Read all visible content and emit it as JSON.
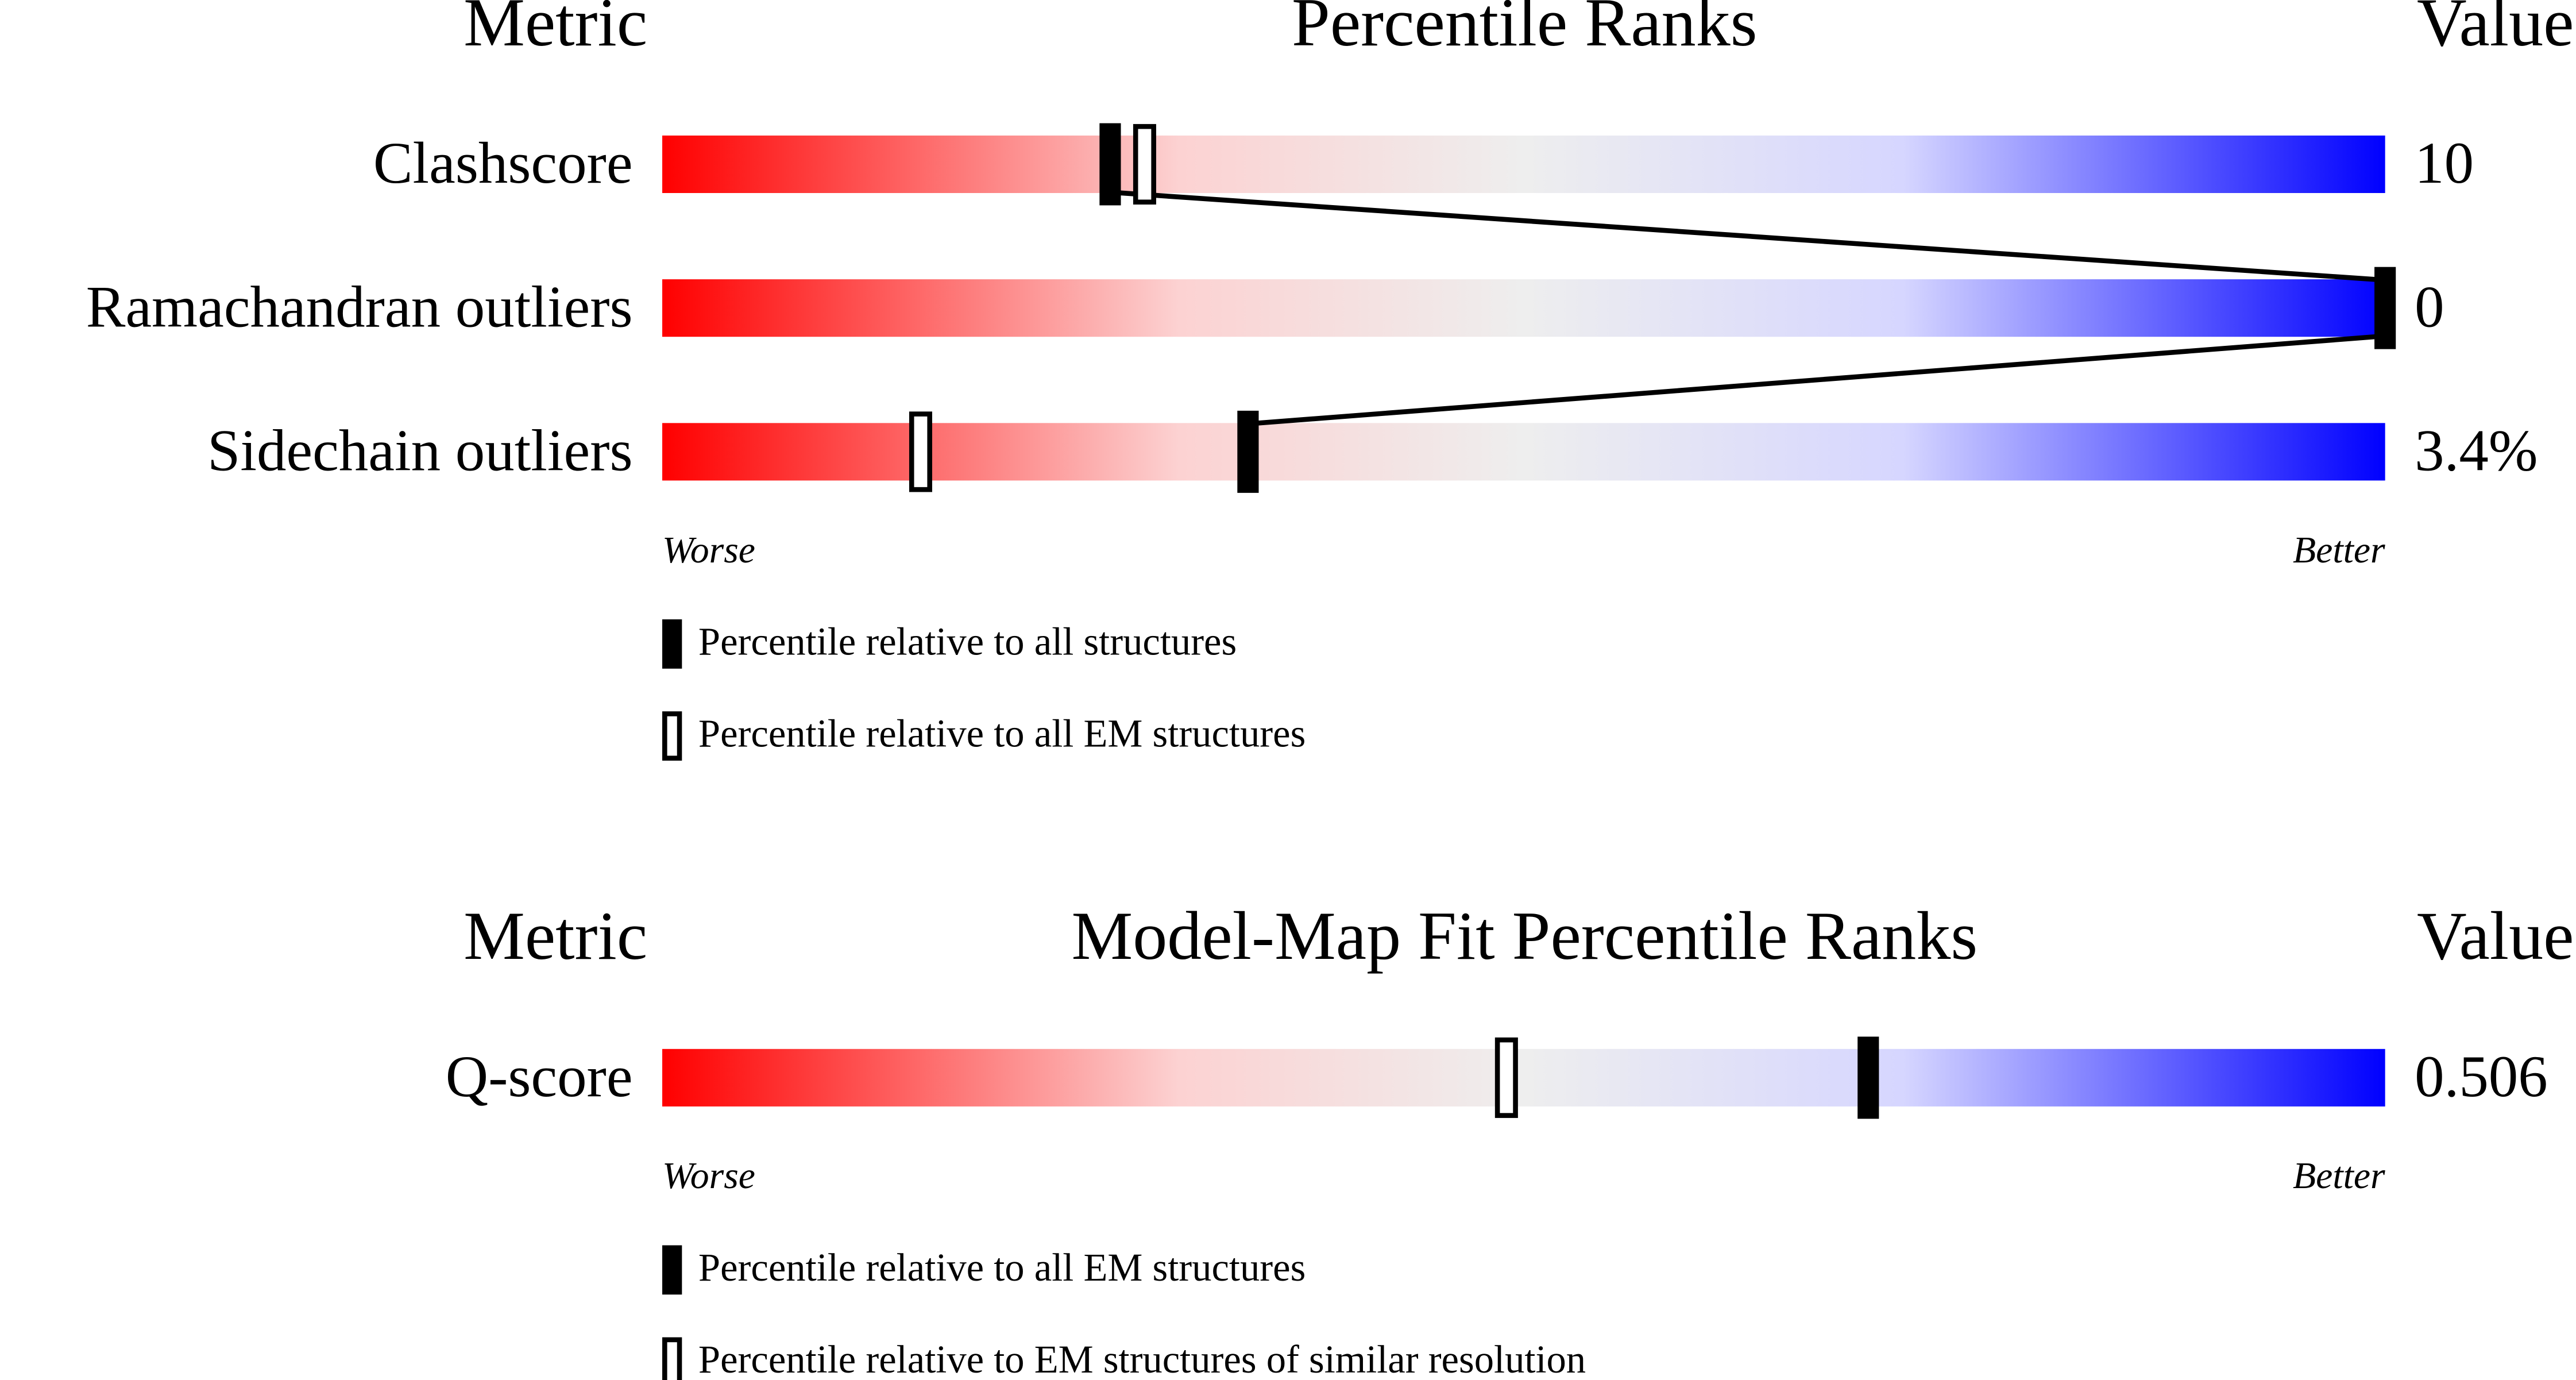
{
  "panels": [
    {
      "headers": {
        "metric": "Metric",
        "title": "Percentile Ranks",
        "value": "Value"
      },
      "rows": [
        {
          "metric": "Clashscore",
          "value": "10",
          "filled_percentile": 26,
          "open_percentile": 28
        },
        {
          "metric": "Ramachandran outliers",
          "value": "0",
          "filled_percentile": 100
        },
        {
          "metric": "Sidechain outliers",
          "value": "3.4%",
          "filled_percentile": 34,
          "open_percentile": 15
        }
      ],
      "scale": {
        "worse": "Worse",
        "better": "Better"
      },
      "legend": {
        "filled": "Percentile relative to all structures",
        "open": "Percentile relative to all EM structures"
      }
    },
    {
      "headers": {
        "metric": "Metric",
        "title": "Model-Map Fit Percentile Ranks",
        "value": "Value"
      },
      "rows": [
        {
          "metric": "Q-score",
          "value": "0.506",
          "filled_percentile": 70,
          "open_percentile": 49
        }
      ],
      "scale": {
        "worse": "Worse",
        "better": "Better"
      },
      "legend": {
        "filled": "Percentile relative to all EM structures",
        "open": "Percentile relative to EM structures of similar resolution"
      }
    }
  ]
}
